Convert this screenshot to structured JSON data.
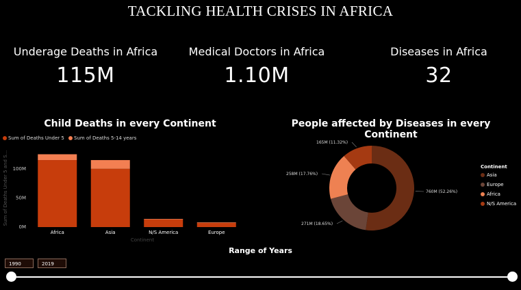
{
  "page_title": "TACKLING HEALTH CRISES IN AFRICA",
  "kpis": [
    {
      "label": "Underage Deaths in Africa",
      "value": "115M"
    },
    {
      "label": "Medical Doctors in Africa",
      "value": "1.10M"
    },
    {
      "label": "Diseases in Africa",
      "value": "32"
    }
  ],
  "bar_chart_title": "Child Deaths in every Continent",
  "donut_chart_title": "People affected by Diseases in every Continent",
  "colors": {
    "under5": "#c73d0c",
    "age5_14": "#f37f52",
    "asia": "#6b2d14",
    "europe": "#6b4538",
    "africa": "#ee8152",
    "ns_america": "#a53a12"
  },
  "chart_data": [
    {
      "type": "bar",
      "title": "Child Deaths in every Continent",
      "xlabel": "Continent",
      "ylabel": "Sum of Deaths Under 5 and S...",
      "categories": [
        "Africa",
        "Asia",
        "N/S America",
        "Europe"
      ],
      "series": [
        {
          "name": "Sum of Deaths Under 5",
          "values": [
            115,
            100,
            13,
            7
          ]
        },
        {
          "name": "Sum of Deaths 5-14 years",
          "values": [
            10,
            15,
            1,
            1
          ]
        }
      ],
      "ylim": [
        0,
        135
      ],
      "yticks": [
        0,
        50,
        100
      ],
      "ytick_labels": [
        "0M",
        "50M",
        "100M"
      ],
      "stacked": true,
      "legend_position": "top-left"
    },
    {
      "type": "pie",
      "donut": true,
      "title": "People affected by Diseases in every Continent",
      "legend_title": "Continent",
      "slices": [
        {
          "name": "Asia",
          "value": 760,
          "label": "760M (52.26%)"
        },
        {
          "name": "Europe",
          "value": 271,
          "label": "271M (18.65%)"
        },
        {
          "name": "Africa",
          "value": 258,
          "label": "258M (17.76%)"
        },
        {
          "name": "N/S America",
          "value": 165,
          "label": "165M (11.32%)"
        }
      ],
      "legend_position": "right"
    }
  ],
  "range": {
    "title": "Range of Years",
    "start": "1990",
    "end": "2019"
  }
}
